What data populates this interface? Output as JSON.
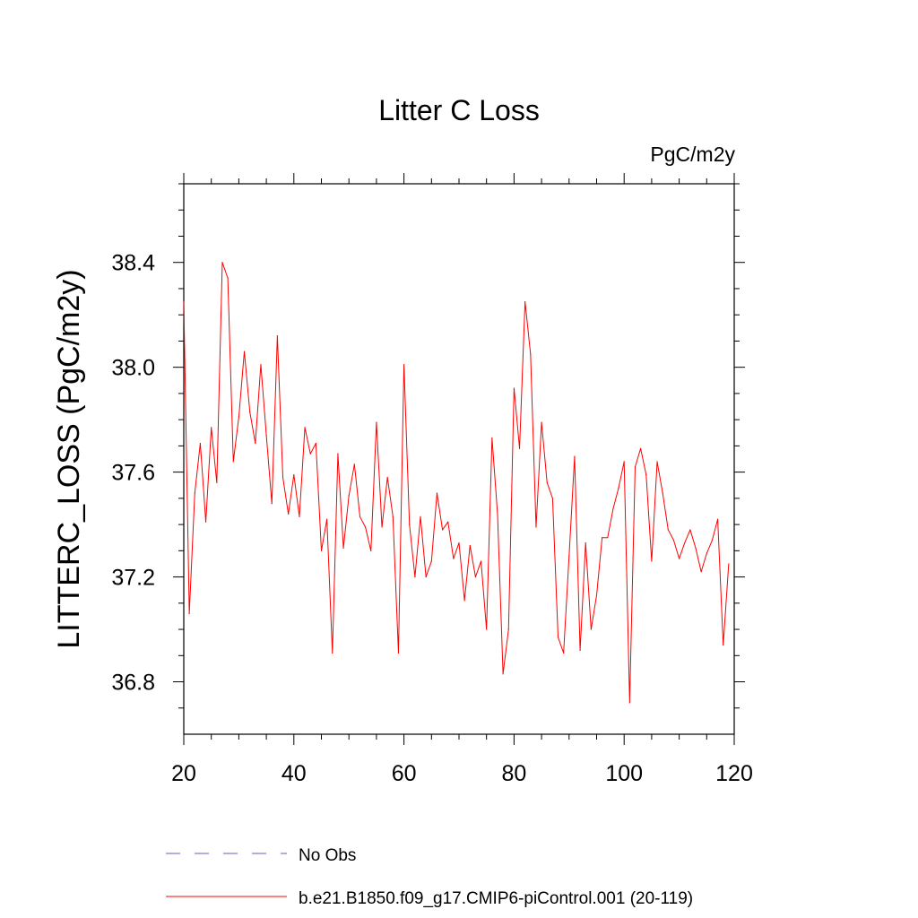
{
  "chart_data": {
    "type": "line",
    "title": "Litter C Loss",
    "units": "PgC/m2y",
    "xlabel": "",
    "ylabel": "LITTERC_LOSS  (PgC/m2y)",
    "xlim": [
      20,
      120
    ],
    "ylim": [
      36.6,
      38.7
    ],
    "xticks": [
      20,
      40,
      60,
      80,
      100,
      120
    ],
    "xtick_labels": [
      "20",
      "40",
      "60",
      "80",
      "100",
      "120"
    ],
    "yticks": [
      36.8,
      37.2,
      37.6,
      38.0,
      38.4
    ],
    "ytick_labels": [
      "36.8",
      "37.2",
      "37.6",
      "38.0",
      "38.4"
    ],
    "grid": false,
    "legend_position": "bottom",
    "series": [
      {
        "name": "b.e21.B1850.f09_g17.CMIP6-piControl.001 (20-119)",
        "color": "#ff0000",
        "style": "solid",
        "x": [
          20,
          21,
          22,
          23,
          24,
          25,
          26,
          27,
          28,
          29,
          30,
          31,
          32,
          33,
          34,
          35,
          36,
          37,
          38,
          39,
          40,
          41,
          42,
          43,
          44,
          45,
          46,
          47,
          48,
          49,
          50,
          51,
          52,
          53,
          54,
          55,
          56,
          57,
          58,
          59,
          60,
          61,
          62,
          63,
          64,
          65,
          66,
          67,
          68,
          69,
          70,
          71,
          72,
          73,
          74,
          75,
          76,
          77,
          78,
          79,
          80,
          81,
          82,
          83,
          84,
          85,
          86,
          87,
          88,
          89,
          90,
          91,
          92,
          93,
          94,
          95,
          96,
          97,
          98,
          99,
          100,
          101,
          102,
          103,
          104,
          105,
          106,
          107,
          108,
          109,
          110,
          111,
          112,
          113,
          114,
          115,
          116,
          117,
          118,
          119
        ],
        "values": [
          38.25,
          37.06,
          37.52,
          37.71,
          37.41,
          37.77,
          37.56,
          38.4,
          38.34,
          37.64,
          37.81,
          38.06,
          37.83,
          37.71,
          38.01,
          37.74,
          37.48,
          38.12,
          37.58,
          37.44,
          37.59,
          37.43,
          37.77,
          37.67,
          37.71,
          37.3,
          37.42,
          36.91,
          37.67,
          37.31,
          37.51,
          37.63,
          37.43,
          37.39,
          37.3,
          37.79,
          37.39,
          37.58,
          37.43,
          36.91,
          38.01,
          37.4,
          37.2,
          37.43,
          37.2,
          37.26,
          37.52,
          37.38,
          37.41,
          37.27,
          37.33,
          37.11,
          37.32,
          37.2,
          37.26,
          37.0,
          37.73,
          37.44,
          36.83,
          37.0,
          37.92,
          37.69,
          38.25,
          38.05,
          37.39,
          37.79,
          37.56,
          37.5,
          36.97,
          36.91,
          37.28,
          37.66,
          36.92,
          37.33,
          37.0,
          37.13,
          37.35,
          37.35,
          37.46,
          37.54,
          37.64,
          36.72,
          37.62,
          37.69,
          37.59,
          37.26,
          37.64,
          37.52,
          37.38,
          37.34,
          37.27,
          37.33,
          37.38,
          37.31,
          37.22,
          37.29,
          37.34,
          37.42,
          36.94,
          37.25
        ]
      }
    ],
    "legend": [
      {
        "label": "No Obs",
        "color": "#6a5acd",
        "style": "dashed"
      },
      {
        "label": "b.e21.B1850.f09_g17.CMIP6-piControl.001 (20-119)",
        "color": "#ff0000",
        "style": "solid"
      }
    ]
  }
}
